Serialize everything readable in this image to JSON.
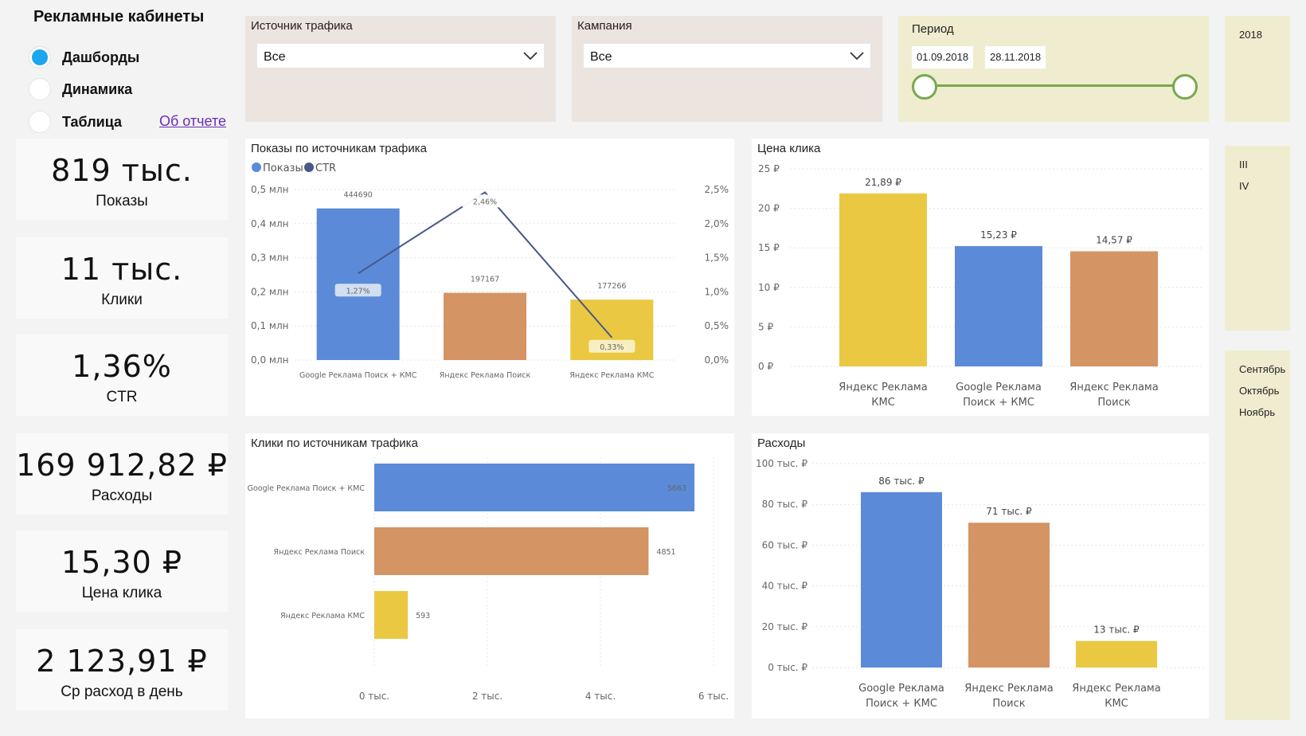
{
  "nav": {
    "title": "Рекламные кабинеты",
    "items": [
      {
        "label": "Дашборды",
        "selected": true
      },
      {
        "label": "Динамика",
        "selected": false
      },
      {
        "label": "Таблица",
        "selected": false
      }
    ],
    "about_link": "Об отчете"
  },
  "kpis": [
    {
      "value": "819 тыс.",
      "label": "Показы"
    },
    {
      "value": "11 тыс.",
      "label": "Клики"
    },
    {
      "value": "1,36%",
      "label": "CTR"
    },
    {
      "value": "169 912,82 ₽",
      "label": "Расходы"
    },
    {
      "value": "15,30 ₽",
      "label": "Цена клика"
    },
    {
      "value": "2 123,91 ₽",
      "label": "Ср расход в день"
    }
  ],
  "filters": {
    "source": {
      "title": "Источник трафика",
      "value": "Все"
    },
    "campaign": {
      "title": "Кампания",
      "value": "Все"
    },
    "period": {
      "title": "Период",
      "start": "01.09.2018",
      "end": "28.11.2018"
    }
  },
  "date_slicers": {
    "year": "2018",
    "quarters": [
      "III",
      "IV"
    ],
    "months": [
      "Сентябрь",
      "Октябрь",
      "Ноябрь"
    ]
  },
  "colors": {
    "blue": "#5b8bd8",
    "orange": "#d49463",
    "yellow": "#ebc842",
    "line": "#4a5787",
    "accent": "#1aa6f1",
    "green": "#77a94d"
  },
  "chart_data": [
    {
      "id": "impressions",
      "type": "bar",
      "title": "Показы по источникам трафика",
      "legend": [
        "Показы",
        "CTR"
      ],
      "categories": [
        "Google Реклама Поиск + КМС",
        "Яндекс Реклама Поиск",
        "Яндекс Реклама КМС"
      ],
      "series": [
        {
          "name": "Показы",
          "values": [
            444690,
            197167,
            177266
          ],
          "labels": [
            "444690",
            "197167",
            "177266"
          ],
          "colors": [
            "#5b8bd8",
            "#d49463",
            "#ebc842"
          ]
        },
        {
          "name": "CTR",
          "values": [
            1.27,
            2.46,
            0.33
          ],
          "labels": [
            "1,27%",
            "2,46%",
            "0,33%"
          ]
        }
      ],
      "y_ticks": [
        "0,0 млн",
        "0,1 млн",
        "0,2 млн",
        "0,3 млн",
        "0,4 млн",
        "0,5 млн"
      ],
      "y2_ticks": [
        "0,0%",
        "0,5%",
        "1,0%",
        "1,5%",
        "2,0%",
        "2,5%"
      ],
      "ylim": [
        0,
        500000
      ],
      "y2lim": [
        0,
        2.5
      ]
    },
    {
      "id": "cpc",
      "type": "bar",
      "title": "Цена клика",
      "categories": [
        "Яндекс Реклама КМС",
        "Google Реклама Поиск + КМС",
        "Яндекс Реклама Поиск"
      ],
      "values": [
        21.89,
        15.23,
        14.57
      ],
      "labels": [
        "21,89 ₽",
        "15,23 ₽",
        "14,57 ₽"
      ],
      "colors": [
        "#ebc842",
        "#5b8bd8",
        "#d49463"
      ],
      "y_ticks": [
        "0 ₽",
        "5 ₽",
        "10 ₽",
        "15 ₽",
        "20 ₽",
        "25 ₽"
      ],
      "ylim": [
        0,
        25
      ]
    },
    {
      "id": "clicks",
      "type": "bar",
      "orientation": "horizontal",
      "title": "Клики по источникам трафика",
      "categories": [
        "Google Реклама Поиск + КМС",
        "Яндекс Реклама Поиск",
        "Яндекс Реклама КМС"
      ],
      "values": [
        5663,
        4851,
        593
      ],
      "labels": [
        "5663",
        "4851",
        "593"
      ],
      "colors": [
        "#5b8bd8",
        "#d49463",
        "#ebc842"
      ],
      "x_ticks": [
        "0 тыс.",
        "2 тыс.",
        "4 тыс.",
        "6 тыс."
      ],
      "xlim": [
        0,
        6000
      ]
    },
    {
      "id": "spend",
      "type": "bar",
      "title": "Расходы",
      "categories": [
        "Google Реклама Поиск + КМС",
        "Яндекс Реклама Поиск",
        "Яндекс Реклама КМС"
      ],
      "values": [
        86,
        71,
        13
      ],
      "labels": [
        "86 тыс. ₽",
        "71 тыс. ₽",
        "13 тыс. ₽"
      ],
      "colors": [
        "#5b8bd8",
        "#d49463",
        "#ebc842"
      ],
      "y_ticks": [
        "0 тыс. ₽",
        "20 тыс. ₽",
        "40 тыс. ₽",
        "60 тыс. ₽",
        "80 тыс. ₽",
        "100 тыс. ₽"
      ],
      "ylim": [
        0,
        100
      ]
    }
  ]
}
